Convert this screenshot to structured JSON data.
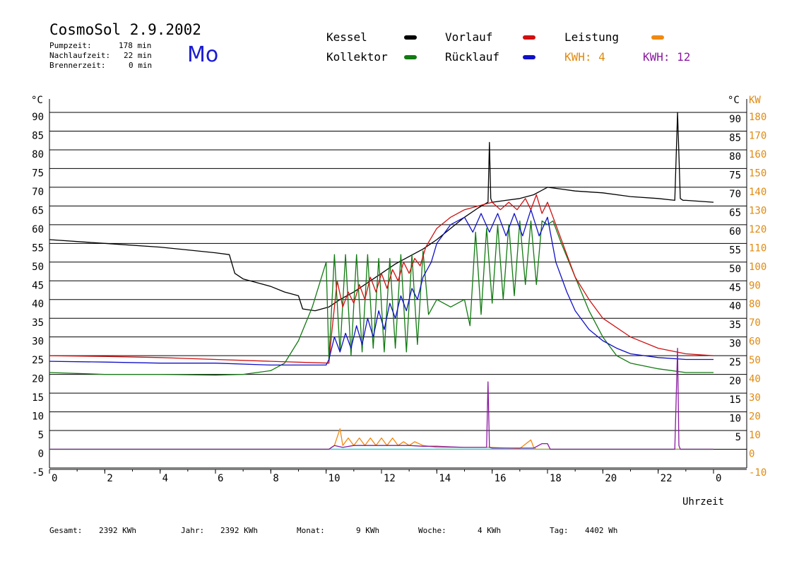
{
  "header": {
    "title": "CosmoSol 2.9.2002",
    "day": "Mo",
    "day_color": "#1a1ad4",
    "pumpzeit_label": "Pumpzeit:",
    "pumpzeit_value": "178 min",
    "nachlauf_label": "Nachlaufzeit:",
    "nachlauf_value": "22 min",
    "brenner_label": "Brennerzeit:",
    "brenner_value": "0 min"
  },
  "legend": {
    "kessel": {
      "label": "Kessel",
      "color": "#000000"
    },
    "kollektor": {
      "label": "Kollektor",
      "color": "#117a11"
    },
    "vorlauf": {
      "label": "Vorlauf",
      "color": "#d01010"
    },
    "ruecklauf": {
      "label": "Rücklauf",
      "color": "#1010c8"
    },
    "leistung": {
      "label": "Leistung",
      "color": "#f08a10"
    },
    "kwh_a": {
      "label": "KWH: 4",
      "color": "#e08a10"
    },
    "kwh_b": {
      "label": "KWH: 12",
      "color": "#8a1aa0"
    }
  },
  "footer": {
    "gesamt_label": "Gesamt:",
    "gesamt_value": "2392 KWh",
    "jahr_label": "Jahr:",
    "jahr_value": "2392 KWh",
    "monat_label": "Monat:",
    "monat_value": "9 KWh",
    "woche_label": "Woche:",
    "woche_value": "4 KWh",
    "tag_label": "Tag:",
    "tag_value": "4402 Wh"
  },
  "chart_data": {
    "type": "line",
    "title": "CosmoSol 2.9.2002",
    "xlabel": "Uhrzeit",
    "ylabel_left": "°C",
    "ylabel_right_1": "°C",
    "ylabel_right_2": "KW",
    "xlim": [
      0,
      24
    ],
    "ylim": [
      -5,
      90
    ],
    "ylim_kw": [
      -10,
      180
    ],
    "grid": true,
    "x_tick_labels": [
      "0",
      "2",
      "4",
      "6",
      "8",
      "10",
      "12",
      "14",
      "16",
      "18",
      "20",
      "22",
      "0"
    ],
    "y_tick_labels_left": [
      "90",
      "85",
      "80",
      "75",
      "70",
      "65",
      "60",
      "55",
      "50",
      "45",
      "40",
      "35",
      "30",
      "25",
      "20",
      "15",
      "10",
      "5",
      "0",
      "-5"
    ],
    "y_tick_labels_right": [
      "90",
      "85",
      "80",
      "75",
      "70",
      "65",
      "60",
      "55",
      "50",
      "45",
      "40",
      "35",
      "30",
      "25",
      "20",
      "15",
      "10",
      "5"
    ],
    "kw_tick_labels": [
      "180",
      "170",
      "160",
      "150",
      "140",
      "130",
      "120",
      "110",
      "100",
      "90",
      "80",
      "70",
      "60",
      "50",
      "40",
      "30",
      "20",
      "10",
      "0",
      "-10"
    ],
    "series": [
      {
        "name": "Kessel",
        "color": "#000000",
        "x": [
          0,
          2,
          4,
          6,
          6.5,
          6.7,
          7.0,
          7.5,
          8.0,
          8.5,
          9.0,
          9.15,
          9.6,
          10.1,
          10.5,
          11.0,
          11.5,
          12.0,
          12.5,
          13.0,
          13.5,
          14.0,
          14.5,
          15.0,
          15.5,
          15.85,
          15.9,
          15.95,
          16.0,
          16.5,
          17.0,
          17.5,
          18.0,
          18.5,
          19.0,
          20.0,
          21.0,
          22.0,
          22.6,
          22.7,
          22.8,
          22.9,
          23.0,
          24.0
        ],
        "y": [
          56,
          55,
          54,
          52.5,
          52,
          47,
          45.5,
          44.5,
          43.5,
          42,
          41,
          37.5,
          37,
          38,
          40,
          42,
          44.5,
          47,
          49.5,
          51.5,
          53.5,
          56,
          59,
          62,
          64.5,
          66,
          82,
          67,
          66,
          66.5,
          67,
          68,
          70,
          69.5,
          69,
          68.5,
          67.5,
          67,
          66.5,
          90,
          67,
          66.5,
          66.5,
          66
        ]
      },
      {
        "name": "Kollektor",
        "color": "#117a11",
        "x": [
          0,
          2,
          4,
          6,
          7,
          8,
          8.5,
          9.0,
          9.5,
          10.0,
          10.1,
          10.3,
          10.5,
          10.7,
          10.9,
          11.1,
          11.3,
          11.5,
          11.7,
          11.9,
          12.1,
          12.3,
          12.5,
          12.7,
          12.9,
          13.1,
          13.3,
          13.5,
          13.7,
          14.0,
          14.5,
          15.0,
          15.2,
          15.4,
          15.6,
          15.8,
          16.0,
          16.2,
          16.4,
          16.6,
          16.8,
          17.0,
          17.2,
          17.4,
          17.6,
          17.8,
          18.0,
          18.2,
          18.5,
          19.0,
          19.5,
          20.0,
          20.5,
          21.0,
          22.0,
          23.0,
          24.0
        ],
        "y": [
          20.5,
          20,
          20,
          19.8,
          20,
          21,
          23,
          29,
          38,
          50,
          24,
          52,
          26,
          52,
          25,
          52,
          26,
          52,
          27,
          51,
          26,
          51,
          27,
          52,
          26,
          52,
          28,
          53,
          36,
          40,
          38,
          40,
          33,
          58,
          36,
          59,
          39,
          60,
          40,
          60,
          41,
          61,
          44,
          61,
          44,
          61,
          60,
          61,
          55,
          46,
          37,
          30,
          25,
          23,
          21.5,
          20.5,
          20.5
        ]
      },
      {
        "name": "Vorlauf",
        "color": "#d01010",
        "x": [
          0,
          2,
          4,
          6,
          8,
          10.1,
          10.2,
          10.4,
          10.6,
          10.8,
          11.0,
          11.2,
          11.4,
          11.6,
          11.8,
          12.0,
          12.2,
          12.4,
          12.6,
          12.8,
          13.0,
          13.2,
          13.4,
          13.6,
          14.0,
          14.5,
          15.0,
          15.5,
          16.0,
          16.3,
          16.6,
          16.9,
          17.2,
          17.4,
          17.6,
          17.8,
          18.0,
          18.3,
          18.7,
          19.0,
          19.5,
          20.0,
          21.0,
          22.0,
          23.0,
          24.0
        ],
        "y": [
          25,
          24.8,
          24.5,
          24,
          23.5,
          23,
          31,
          45,
          38,
          42,
          39,
          44,
          40,
          46,
          42,
          47,
          43,
          48,
          45,
          50,
          47,
          51,
          49,
          54,
          59,
          62,
          64,
          65,
          66,
          64,
          66,
          64,
          67,
          64,
          68,
          63,
          66,
          60,
          52,
          46,
          40,
          35,
          30,
          27,
          25.5,
          25
        ]
      },
      {
        "name": "Rücklauf",
        "color": "#1010c8",
        "x": [
          0,
          2,
          4,
          6,
          8,
          10.0,
          10.1,
          10.3,
          10.5,
          10.7,
          10.9,
          11.1,
          11.3,
          11.5,
          11.7,
          11.9,
          12.1,
          12.3,
          12.5,
          12.7,
          12.9,
          13.1,
          13.3,
          13.5,
          13.8,
          14.0,
          14.5,
          15.0,
          15.3,
          15.6,
          15.9,
          16.2,
          16.5,
          16.8,
          17.1,
          17.4,
          17.7,
          18.0,
          18.3,
          18.7,
          19.0,
          19.5,
          20.0,
          20.5,
          21.0,
          22.0,
          23.0,
          24.0
        ],
        "y": [
          23.5,
          23.3,
          23,
          23,
          22.5,
          22.5,
          24,
          30,
          26,
          31,
          27,
          33,
          28,
          35,
          30,
          37,
          32,
          39,
          35,
          41,
          37,
          43,
          40,
          46,
          50,
          55,
          60,
          62,
          58,
          63,
          58,
          63,
          57,
          63,
          57,
          64,
          57,
          62,
          50,
          42,
          37,
          32,
          29,
          27,
          25.5,
          24.5,
          24,
          24
        ]
      },
      {
        "name": "Leistung",
        "color": "#f08a10",
        "x": [
          0,
          10.1,
          10.3,
          10.5,
          10.6,
          10.8,
          11.0,
          11.2,
          11.4,
          11.6,
          11.8,
          12.0,
          12.2,
          12.4,
          12.6,
          12.8,
          13.0,
          13.2,
          13.5,
          14.0,
          15.0,
          16.0,
          16.5,
          17.0,
          17.4,
          17.5,
          17.6,
          24.0
        ],
        "y": [
          0,
          0,
          1,
          5.5,
          1,
          3,
          1,
          3,
          1,
          3,
          1,
          3,
          1,
          3,
          1,
          2,
          1,
          2,
          1,
          0.5,
          0.5,
          0.5,
          0.3,
          0.2,
          2.5,
          0.5,
          0,
          0
        ]
      },
      {
        "name": "KWH: 12",
        "color": "#8a1aa0",
        "x": [
          0,
          10.1,
          10.3,
          10.6,
          11.0,
          11.5,
          12.0,
          12.5,
          13.0,
          13.5,
          14.0,
          15.0,
          15.8,
          15.85,
          15.9,
          16.0,
          16.5,
          17.0,
          17.5,
          17.8,
          18.0,
          18.1,
          22.6,
          22.7,
          22.75,
          22.8,
          24.0
        ],
        "y": [
          0,
          0,
          1,
          0.5,
          1,
          1,
          1,
          1,
          1,
          0.8,
          0.8,
          0.5,
          0.5,
          18,
          0.5,
          0.3,
          0.3,
          0.3,
          0.3,
          1.5,
          1.5,
          0,
          0,
          27,
          1,
          0,
          0
        ]
      }
    ]
  }
}
